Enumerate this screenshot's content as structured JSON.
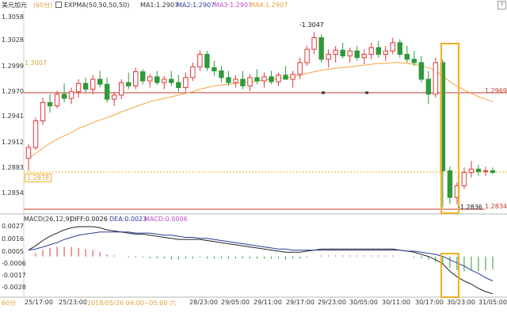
{
  "header": {
    "symbol": "美元加元",
    "period": "(60分)",
    "indicator_name": "EXPMA(50,50,50,50)",
    "ma1": "MA1:1.2907",
    "ma2": "MA2:1.2907",
    "ma3": "MA3:1.2907",
    "ma4": "MA4:1.2907",
    "help_icon": "question-icon"
  },
  "colors": {
    "up": "#e0373a",
    "down": "#2f9a3a",
    "ema": "#f5a23c",
    "highlight": "#f0b020",
    "hline": "#c0392b",
    "macd_dif": "#222222",
    "macd_dea": "#2a3c9c"
  },
  "price_axis": {
    "ticks": [
      "1.3058",
      "1.3028",
      "1.2999",
      "1.2970",
      "1.2941",
      "1.2912",
      "1.2883",
      "1.2854"
    ]
  },
  "labels": {
    "high": "-1.3047",
    "low": "-1.2836",
    "ema_left": "1.3007",
    "line_1": "1.2969",
    "current_left": "1.2878",
    "line_2": "1.2834"
  },
  "macd": {
    "title": "MACD(26,12,9)",
    "dif": "DIFF:0.0026",
    "dea": "DEA:0.0023",
    "macd": "MACD:0.0006",
    "ticks": [
      "0.0027",
      "0.0016",
      "0.0005",
      "-0.0006",
      "-0.0017",
      "-0.0028"
    ]
  },
  "time_axis": {
    "period_tag": "60分",
    "labels": [
      "25/17:00",
      "25/23:00",
      "26/05:00",
      "28/23:00",
      "29/05:00",
      "29/11:00",
      "29/17:00",
      "29/23:00",
      "30/05:00",
      "30/11:00",
      "30/17:00",
      "30/23:00",
      "31/05:00"
    ],
    "cursor_text": "2018/05/26 04:00~05:00 六"
  },
  "chart_data": [
    {
      "type": "candlestick",
      "title": "美元加元(60分)",
      "legend": [
        "EXPMA(50,50,50,50)",
        "MA1:1.2907",
        "MA2:1.2907",
        "MA3:1.2907",
        "MA4:1.2907"
      ],
      "ylim": [
        1.283,
        1.307
      ],
      "ohlc": [
        [
          1.2895,
          1.2912,
          1.288,
          1.2908
        ],
        [
          1.2908,
          1.2944,
          1.2905,
          1.294
        ],
        [
          1.294,
          1.2968,
          1.2935,
          1.2962
        ],
        [
          1.2962,
          1.2972,
          1.295,
          1.2958
        ],
        [
          1.2958,
          1.2976,
          1.2955,
          1.2972
        ],
        [
          1.2972,
          1.2985,
          1.2962,
          1.2967
        ],
        [
          1.2967,
          1.298,
          1.296,
          1.2975
        ],
        [
          1.2975,
          1.299,
          1.2968,
          1.2985
        ],
        [
          1.2985,
          1.2992,
          1.2974,
          1.2978
        ],
        [
          1.2978,
          1.2995,
          1.2972,
          1.299
        ],
        [
          1.299,
          1.3,
          1.298,
          1.2984
        ],
        [
          1.2984,
          1.2992,
          1.2962,
          1.2966
        ],
        [
          1.2966,
          1.2975,
          1.2958,
          1.2971
        ],
        [
          1.2971,
          1.299,
          1.2966,
          1.2986
        ],
        [
          1.2986,
          1.2998,
          1.2978,
          1.2982
        ],
        [
          1.2982,
          1.3004,
          1.2978,
          1.2999
        ],
        [
          1.2999,
          1.3002,
          1.2984,
          1.2988
        ],
        [
          1.2988,
          1.2996,
          1.298,
          1.2993
        ],
        [
          1.2993,
          1.3,
          1.2983,
          1.2986
        ],
        [
          1.2986,
          1.2994,
          1.2978,
          1.299
        ],
        [
          1.299,
          1.3,
          1.2982,
          1.2986
        ],
        [
          1.2986,
          1.2995,
          1.2975,
          1.298
        ],
        [
          1.298,
          1.2998,
          1.2975,
          1.2992
        ],
        [
          1.2992,
          1.301,
          1.2988,
          1.3005
        ],
        [
          1.3005,
          1.3025,
          1.3,
          1.302
        ],
        [
          1.302,
          1.3024,
          1.3,
          1.3004
        ],
        [
          1.3004,
          1.3012,
          1.2994,
          1.3
        ],
        [
          1.3,
          1.3006,
          1.2986,
          1.2992
        ],
        [
          1.2992,
          1.3,
          1.2982,
          1.2986
        ],
        [
          1.2986,
          1.2995,
          1.298,
          1.299
        ],
        [
          1.299,
          1.3,
          1.2978,
          1.2982
        ],
        [
          1.2982,
          1.2996,
          1.2976,
          1.2992
        ],
        [
          1.2992,
          1.3002,
          1.2984,
          1.2988
        ],
        [
          1.2988,
          1.2998,
          1.298,
          1.2993
        ],
        [
          1.2993,
          1.3,
          1.2984,
          1.2987
        ],
        [
          1.2987,
          1.2998,
          1.2982,
          1.2995
        ],
        [
          1.2995,
          1.3006,
          1.299,
          1.299
        ],
        [
          1.299,
          1.3,
          1.298,
          1.2996
        ],
        [
          1.2996,
          1.3016,
          1.299,
          1.301
        ],
        [
          1.301,
          1.303,
          1.3006,
          1.3026
        ],
        [
          1.3026,
          1.3047,
          1.302,
          1.304
        ],
        [
          1.304,
          1.3044,
          1.301,
          1.3014
        ],
        [
          1.3014,
          1.3026,
          1.3004,
          1.302
        ],
        [
          1.302,
          1.303,
          1.301,
          1.3025
        ],
        [
          1.3025,
          1.3034,
          1.3015,
          1.3018
        ],
        [
          1.3018,
          1.3028,
          1.301,
          1.3024
        ],
        [
          1.3024,
          1.303,
          1.3012,
          1.3016
        ],
        [
          1.3016,
          1.3026,
          1.3008,
          1.302
        ],
        [
          1.302,
          1.3034,
          1.3014,
          1.3028
        ],
        [
          1.3028,
          1.3036,
          1.3016,
          1.302
        ],
        [
          1.302,
          1.303,
          1.3012,
          1.3024
        ],
        [
          1.3024,
          1.304,
          1.302,
          1.3034
        ],
        [
          1.3034,
          1.3038,
          1.3016,
          1.302
        ],
        [
          1.302,
          1.303,
          1.301,
          1.3014
        ],
        [
          1.3014,
          1.3024,
          1.3006,
          1.301
        ],
        [
          1.301,
          1.3018,
          1.2986,
          1.299
        ],
        [
          1.299,
          1.3,
          1.296,
          1.2972
        ],
        [
          1.2972,
          1.3016,
          1.2968,
          1.301
        ],
        [
          1.301,
          1.3014,
          1.2836,
          1.288
        ],
        [
          1.288,
          1.2885,
          1.284,
          1.2848
        ],
        [
          1.2848,
          1.2866,
          1.284,
          1.2862
        ],
        [
          1.2862,
          1.2884,
          1.2858,
          1.2878
        ],
        [
          1.2878,
          1.2892,
          1.2872,
          1.2882
        ],
        [
          1.2882,
          1.2887,
          1.2874,
          1.2879
        ],
        [
          1.2879,
          1.2885,
          1.2874,
          1.288
        ],
        [
          1.288,
          1.2884,
          1.2876,
          1.2878
        ]
      ],
      "ema": [
        1.2895,
        1.2901,
        1.2907,
        1.2913,
        1.2918,
        1.2922,
        1.2926,
        1.2931,
        1.2934,
        1.2938,
        1.2941,
        1.2944,
        1.2947,
        1.2951,
        1.2954,
        1.2957,
        1.296,
        1.2963,
        1.2965,
        1.2967,
        1.2969,
        1.2971,
        1.2973,
        1.2975,
        1.2978,
        1.298,
        1.2982,
        1.2983,
        1.2984,
        1.2985,
        1.2986,
        1.2987,
        1.2988,
        1.2989,
        1.299,
        1.2991,
        1.2992,
        1.2993,
        1.2995,
        1.2997,
        1.2999,
        1.3001,
        1.3002,
        1.3003,
        1.3004,
        1.3005,
        1.3006,
        1.3007,
        1.3008,
        1.3009,
        1.3009,
        1.301,
        1.301,
        1.3009,
        1.3008,
        1.3006,
        1.3004,
        1.3,
        1.2994,
        1.2987,
        1.2982,
        1.2977,
        1.2973,
        1.2969,
        1.2966,
        1.2963
      ],
      "annotations": [
        "-1.3047",
        "-1.2836",
        "1.3007",
        "1.2969",
        "1.2878",
        "1.2834"
      ]
    },
    {
      "type": "macd",
      "title": "MACD(26,12,9)",
      "legend": [
        "DIFF:0.0026",
        "DEA:0.0023",
        "MACD:0.0006"
      ],
      "ylim": [
        -0.0036,
        0.0031
      ],
      "dif": [
        0.0006,
        0.001,
        0.0015,
        0.0019,
        0.0022,
        0.0025,
        0.0027,
        0.0028,
        0.0028,
        0.0028,
        0.0027,
        0.0025,
        0.0024,
        0.0023,
        0.0022,
        0.0021,
        0.0021,
        0.002,
        0.0019,
        0.0018,
        0.0017,
        0.0016,
        0.0016,
        0.0016,
        0.0016,
        0.0015,
        0.0014,
        0.0013,
        0.0012,
        0.0011,
        0.001,
        0.0009,
        0.0008,
        0.0007,
        0.0006,
        0.0005,
        0.0004,
        0.0004,
        0.0004,
        0.0005,
        0.0006,
        0.0007,
        0.0007,
        0.0007,
        0.0007,
        0.0007,
        0.0007,
        0.0007,
        0.0007,
        0.0007,
        0.0007,
        0.0007,
        0.0006,
        0.0005,
        0.0004,
        0.0002,
        0.0,
        -0.0003,
        -0.0007,
        -0.0014,
        -0.0019,
        -0.0023,
        -0.0026,
        -0.003,
        -0.0033,
        -0.0035
      ],
      "dea": [
        0.0006,
        0.0007,
        0.0009,
        0.0011,
        0.0013,
        0.0016,
        0.0018,
        0.002,
        0.0021,
        0.0022,
        0.0023,
        0.0023,
        0.0023,
        0.0023,
        0.0023,
        0.0022,
        0.0022,
        0.0022,
        0.0021,
        0.002,
        0.002,
        0.0019,
        0.0018,
        0.0018,
        0.0017,
        0.0017,
        0.0016,
        0.0015,
        0.0014,
        0.0013,
        0.0012,
        0.0011,
        0.001,
        0.0009,
        0.0008,
        0.0007,
        0.0007,
        0.0006,
        0.0006,
        0.0006,
        0.0006,
        0.0006,
        0.0006,
        0.0006,
        0.0006,
        0.0006,
        0.0006,
        0.0006,
        0.0006,
        0.0006,
        0.0006,
        0.0006,
        0.0006,
        0.0005,
        0.0005,
        0.0004,
        0.0003,
        0.0002,
        0.0,
        -0.0003,
        -0.0006,
        -0.0009,
        -0.0013,
        -0.0016,
        -0.002,
        -0.0023
      ],
      "hist": [
        0.0,
        0.0003,
        0.0006,
        0.0008,
        0.0009,
        0.0009,
        0.0009,
        0.0008,
        0.0007,
        0.0006,
        0.0004,
        0.0002,
        0.0001,
        0.0,
        -0.0001,
        -0.0001,
        -0.0001,
        -0.0002,
        -0.0002,
        -0.0002,
        -0.0003,
        -0.0003,
        -0.0002,
        -0.0002,
        -0.0001,
        -0.0002,
        -0.0002,
        -0.0002,
        -0.0002,
        -0.0002,
        -0.0002,
        -0.0002,
        -0.0002,
        -0.0002,
        -0.0002,
        -0.0002,
        -0.0003,
        -0.0002,
        -0.0002,
        -0.0001,
        0.0,
        0.0001,
        0.0001,
        0.0001,
        0.0001,
        0.0001,
        0.0001,
        0.0001,
        0.0001,
        0.0001,
        0.0001,
        0.0001,
        0.0,
        0.0,
        -0.0001,
        -0.0002,
        -0.0003,
        -0.0005,
        -0.0007,
        -0.0011,
        -0.0013,
        -0.0014,
        -0.0013,
        -0.0014,
        -0.0013,
        -0.0012
      ]
    }
  ]
}
